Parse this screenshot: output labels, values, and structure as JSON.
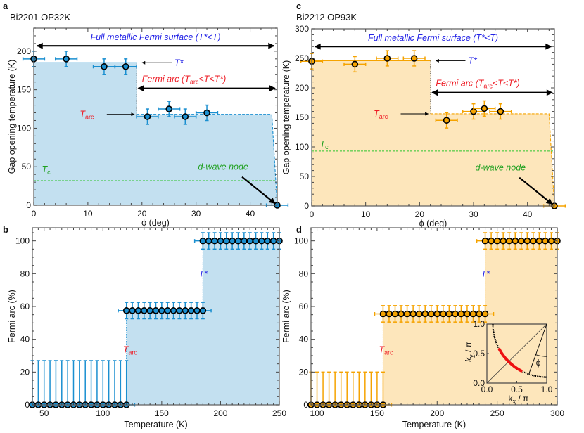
{
  "chart_data": [
    {
      "panel_letter": "a",
      "type": "scatter",
      "title": "Bi2201 OP32K",
      "xlabel": "ϕ (deg)",
      "ylabel": "Gap opening temperature (K)",
      "xlim": [
        0,
        45
      ],
      "ylim": [
        0,
        230
      ],
      "xticks": [
        "0",
        "10",
        "20",
        "30",
        "40"
      ],
      "yticks": [
        "0",
        "50",
        "100",
        "150",
        "200"
      ],
      "series_color": "#1a8fd0",
      "fill_color": "#c3e0f0",
      "points": {
        "x": [
          0,
          6,
          13,
          17,
          21,
          25,
          28,
          32,
          45
        ],
        "y": [
          190,
          190,
          180,
          180,
          115,
          125,
          115,
          120,
          0
        ],
        "xerr": 2,
        "yerr": 10
      },
      "step": {
        "tstar": 185,
        "tarc": 118,
        "phi_break": 19,
        "phi_end": 44
      },
      "tc": 32,
      "annotations": {
        "full_metallic": "Full metallic Fermi surface (T*<T)",
        "fermi_arc": [
          "Fermi arc (",
          "T",
          "arc",
          "<T<T*)"
        ],
        "tstar": "T*",
        "tarc": [
          "T",
          "arc"
        ],
        "tc": [
          "T",
          "c"
        ],
        "node": "d-wave node"
      },
      "colors": {
        "tstar": "#2424e6",
        "tarc": "#ee1c25",
        "tc": "#1fa01f"
      }
    },
    {
      "panel_letter": "b",
      "type": "scatter",
      "xlabel": "Temperature (K)",
      "ylabel": "Fermi arc (%)",
      "xlim": [
        40,
        250
      ],
      "ylim": [
        0,
        108
      ],
      "xticks": [
        "50",
        "100",
        "150",
        "200",
        "250"
      ],
      "yticks": [
        "0",
        "20",
        "40",
        "60",
        "80",
        "100"
      ],
      "series_color": "#1a8fd0",
      "fill_color": "#c3e0f0",
      "levels": [
        {
          "value": 0,
          "t_from": 40,
          "t_to": 120,
          "t_step": 5,
          "err_up": 27,
          "err_down": 0
        },
        {
          "value": 57.5,
          "t_from": 120,
          "t_to": 185,
          "t_step": 5,
          "err_up": 5,
          "err_down": 5
        },
        {
          "value": 100,
          "t_from": 185,
          "t_to": 250,
          "t_step": 5,
          "err_up": 5,
          "err_down": 5
        }
      ],
      "tarc": 120,
      "tstar": 185,
      "xerr": 7,
      "annotations": {
        "tstar": "T*",
        "tarc": [
          "T",
          "arc"
        ]
      },
      "colors": {
        "tstar": "#2424e6",
        "tarc": "#ee1c25"
      }
    },
    {
      "panel_letter": "c",
      "type": "scatter",
      "title": "Bi2212 OP93K",
      "xlabel": "ϕ (deg)",
      "ylabel": "Gap opening temperature (K)",
      "xlim": [
        0,
        45
      ],
      "ylim": [
        0,
        300
      ],
      "xticks": [
        "0",
        "10",
        "20",
        "30",
        "40"
      ],
      "yticks": [
        "0",
        "50",
        "100",
        "150",
        "200",
        "250",
        "300"
      ],
      "series_color": "#f5a300",
      "fill_color": "#fde6bb",
      "points": {
        "x": [
          0,
          8,
          14,
          19,
          25,
          30,
          32,
          35,
          45
        ],
        "y": [
          245,
          240,
          250,
          250,
          145,
          160,
          165,
          160,
          0
        ],
        "xerr": 2,
        "yerr": 13
      },
      "step": {
        "tstar": 246,
        "tarc": 156,
        "phi_break": 22,
        "phi_end": 44
      },
      "tc": 93,
      "annotations": {
        "full_metallic": "Full metallic Fermi surface (T*<T)",
        "fermi_arc": [
          "Fermi arc (",
          "T",
          "arc",
          "<T<T*)"
        ],
        "tstar": "T*",
        "tarc": [
          "T",
          "arc"
        ],
        "tc": [
          "T",
          "c"
        ],
        "node": "d-wave node"
      },
      "colors": {
        "tstar": "#2424e6",
        "tarc": "#ee1c25",
        "tc": "#1fa01f"
      }
    },
    {
      "panel_letter": "d",
      "type": "scatter",
      "xlabel": "Temperature (K)",
      "ylabel": "Fermi arc (%)",
      "xlim": [
        95,
        300
      ],
      "ylim": [
        0,
        108
      ],
      "xticks": [
        "100",
        "150",
        "200",
        "250",
        "300"
      ],
      "yticks": [
        "0",
        "20",
        "40",
        "60",
        "80",
        "100"
      ],
      "series_color": "#f5a300",
      "fill_color": "#fde6bb",
      "levels": [
        {
          "value": 0,
          "t_from": 95,
          "t_to": 155,
          "t_step": 5,
          "err_up": 20,
          "err_down": 0
        },
        {
          "value": 55.5,
          "t_from": 155,
          "t_to": 240,
          "t_step": 5,
          "err_up": 5,
          "err_down": 5
        },
        {
          "value": 100,
          "t_from": 240,
          "t_to": 300,
          "t_step": 5,
          "err_up": 5,
          "err_down": 5
        }
      ],
      "tarc": 155,
      "tstar": 240,
      "xerr": 7,
      "annotations": {
        "tstar": "T*",
        "tarc": [
          "T",
          "arc"
        ]
      },
      "colors": {
        "tstar": "#2424e6",
        "tarc": "#ee1c25"
      },
      "inset": {
        "xlabel": [
          "k",
          "x",
          " / π"
        ],
        "ylabel": [
          "k",
          "y",
          " / π"
        ],
        "xticks": [
          "0.0",
          "0.5",
          "1.0"
        ],
        "yticks": [
          "0.0",
          "0.5",
          "1.0"
        ],
        "angle_label": "ϕ",
        "arc_color": "#ee1111"
      }
    }
  ]
}
